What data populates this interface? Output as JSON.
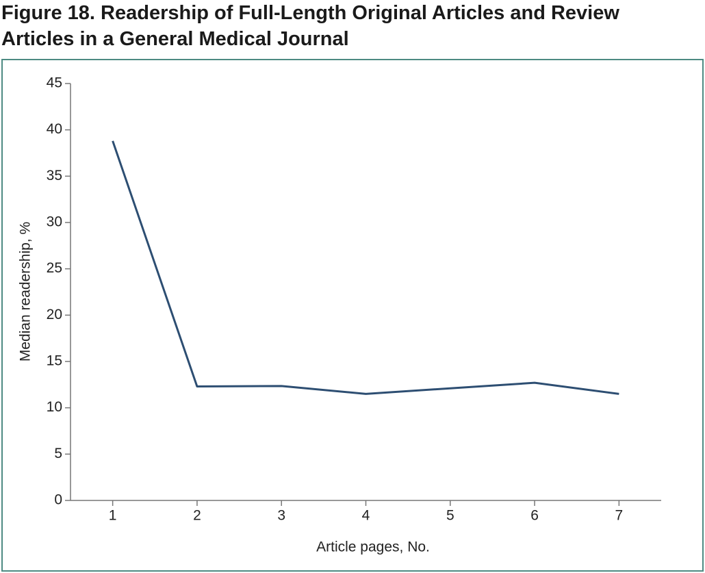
{
  "chart_data": {
    "type": "line",
    "title": "Figure 18. Readership of Full-Length Original Articles and Review Articles in a General Medical Journal",
    "x_label": "Article pages, No.",
    "y_label": "Median readership, %",
    "x": [
      1,
      2,
      3,
      4,
      5,
      6,
      7
    ],
    "series": [
      {
        "name": "Median readership",
        "color": "#2d4e72",
        "values": [
          38.8,
          12.3,
          12.35,
          11.5,
          12.1,
          12.7,
          11.5
        ]
      }
    ],
    "xlim": [
      0.5,
      7.5
    ],
    "xticks": [
      1,
      2,
      3,
      4,
      5,
      6,
      7
    ],
    "ylim": [
      0,
      45
    ],
    "yticks": [
      0,
      5,
      10,
      15,
      20,
      25,
      30,
      35,
      40,
      45
    ],
    "grid": false
  }
}
